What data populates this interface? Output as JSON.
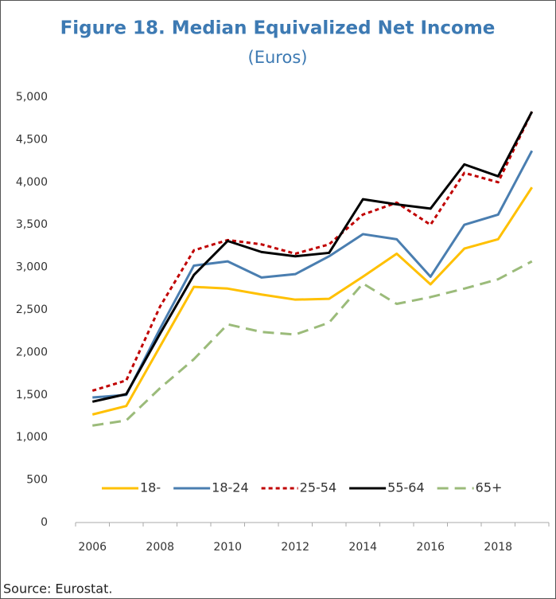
{
  "chart_data": {
    "type": "line",
    "title": "Figure 18. Median Equivalized Net Income",
    "subtitle": "(Euros)",
    "categories": [
      "2006",
      null,
      "2008",
      null,
      "2010",
      null,
      "2012",
      null,
      "2014",
      null,
      "2016",
      null,
      "2018",
      null
    ],
    "ylim": [
      0,
      5000
    ],
    "yticks": [
      0,
      500,
      {
        "value": 1000,
        "label": "1,000"
      },
      {
        "value": 1500,
        "label": "1,500"
      },
      {
        "value": 2000,
        "label": "2,000"
      },
      {
        "value": 2500,
        "label": "2,500"
      },
      {
        "value": 3000,
        "label": "3,000"
      },
      {
        "value": 3500,
        "label": "3,500"
      },
      {
        "value": 4000,
        "label": "4,000"
      },
      {
        "value": 4500,
        "label": "4,500"
      },
      {
        "value": 5000,
        "label": "5,000"
      }
    ],
    "grid": false,
    "legend": "bottom",
    "series": [
      {
        "name": "18-",
        "color": "#ffc000",
        "values": [
          1270,
          1370,
          2070,
          2770,
          2750,
          2680,
          2620,
          2630,
          2890,
          3160,
          2800,
          3220,
          3330,
          3940
        ]
      },
      {
        "name": "18-24",
        "color": "#4a7eb0",
        "values": [
          1470,
          1500,
          2280,
          3020,
          3070,
          2880,
          2920,
          3130,
          3390,
          3330,
          2890,
          3500,
          3620,
          4370
        ]
      },
      {
        "name": "25-54",
        "color": "#c00000",
        "dash": "short",
        "values": [
          1550,
          1670,
          2540,
          3200,
          3320,
          3270,
          3160,
          3270,
          3620,
          3760,
          3500,
          4110,
          4000,
          4830
        ]
      },
      {
        "name": "55-64",
        "color": "#000000",
        "values": [
          1420,
          1510,
          2220,
          2910,
          3310,
          3180,
          3130,
          3170,
          3800,
          3740,
          3690,
          4210,
          4070,
          4830
        ]
      },
      {
        "name": "65+",
        "color": "#9bbb7a",
        "dash": "long",
        "values": [
          1140,
          1200,
          1580,
          1920,
          2330,
          2240,
          2210,
          2350,
          2810,
          2570,
          2650,
          2750,
          2860,
          3070
        ]
      }
    ],
    "source": "Source: Eurostat."
  }
}
